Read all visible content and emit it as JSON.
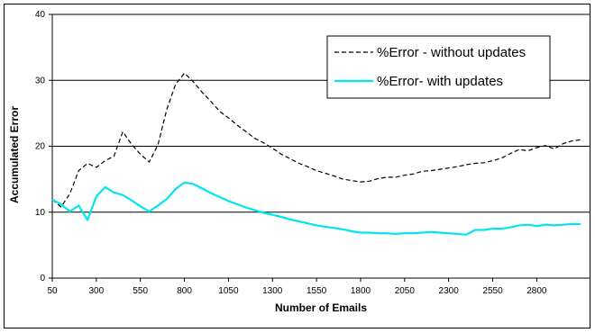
{
  "chart_data": {
    "type": "line",
    "title": "",
    "xlabel": "Number of Emails",
    "ylabel": "Accumulated Error",
    "xlim": [
      50,
      3100
    ],
    "ylim": [
      0,
      40
    ],
    "x_ticks": [
      50,
      300,
      550,
      800,
      1050,
      1300,
      1550,
      1800,
      2050,
      2300,
      2550,
      2800
    ],
    "y_ticks": [
      0,
      10,
      20,
      30,
      40
    ],
    "grid": {
      "horizontal": true,
      "vertical": false
    },
    "legend_position": "top-right",
    "x": [
      50,
      100,
      150,
      200,
      250,
      300,
      350,
      400,
      450,
      500,
      550,
      600,
      650,
      700,
      750,
      800,
      850,
      900,
      950,
      1000,
      1050,
      1100,
      1150,
      1200,
      1250,
      1300,
      1350,
      1400,
      1450,
      1500,
      1550,
      1600,
      1650,
      1700,
      1750,
      1800,
      1850,
      1900,
      1950,
      2000,
      2050,
      2100,
      2150,
      2200,
      2250,
      2300,
      2350,
      2400,
      2450,
      2500,
      2550,
      2600,
      2650,
      2700,
      2750,
      2800,
      2850,
      2900,
      2950,
      3000,
      3050
    ],
    "series": [
      {
        "name": "%Error - without updates",
        "color": "#000000",
        "style": "dashed",
        "values": [
          11.9,
          10.8,
          12.8,
          16.3,
          17.4,
          16.8,
          17.8,
          18.5,
          22.2,
          20.3,
          18.8,
          17.6,
          20.2,
          25.6,
          29.4,
          31.1,
          29.8,
          28.2,
          26.8,
          25.3,
          24.3,
          23.2,
          22.2,
          21.2,
          20.5,
          19.7,
          18.8,
          18.1,
          17.4,
          16.9,
          16.3,
          15.9,
          15.5,
          15.0,
          14.8,
          14.6,
          14.7,
          15.1,
          15.3,
          15.3,
          15.6,
          15.8,
          16.2,
          16.3,
          16.5,
          16.7,
          16.9,
          17.2,
          17.4,
          17.5,
          17.8,
          18.2,
          18.9,
          19.5,
          19.3,
          19.8,
          20.1,
          19.6,
          20.4,
          20.8,
          21.0
        ]
      },
      {
        "name": "%Error- with updates",
        "color": "#00e5ee",
        "style": "solid",
        "values": [
          11.9,
          11.2,
          10.1,
          11.0,
          8.8,
          12.4,
          13.8,
          13.0,
          12.6,
          11.8,
          10.9,
          10.1,
          11.0,
          12.0,
          13.5,
          14.5,
          14.3,
          13.6,
          12.9,
          12.3,
          11.7,
          11.2,
          10.7,
          10.3,
          9.9,
          9.6,
          9.3,
          8.9,
          8.6,
          8.3,
          8.0,
          7.8,
          7.6,
          7.4,
          7.1,
          6.9,
          6.9,
          6.8,
          6.8,
          6.7,
          6.8,
          6.8,
          6.9,
          7.0,
          6.9,
          6.8,
          6.7,
          6.6,
          7.3,
          7.3,
          7.5,
          7.5,
          7.7,
          8.0,
          8.1,
          7.9,
          8.1,
          8.0,
          8.1,
          8.2,
          8.2
        ]
      }
    ]
  }
}
